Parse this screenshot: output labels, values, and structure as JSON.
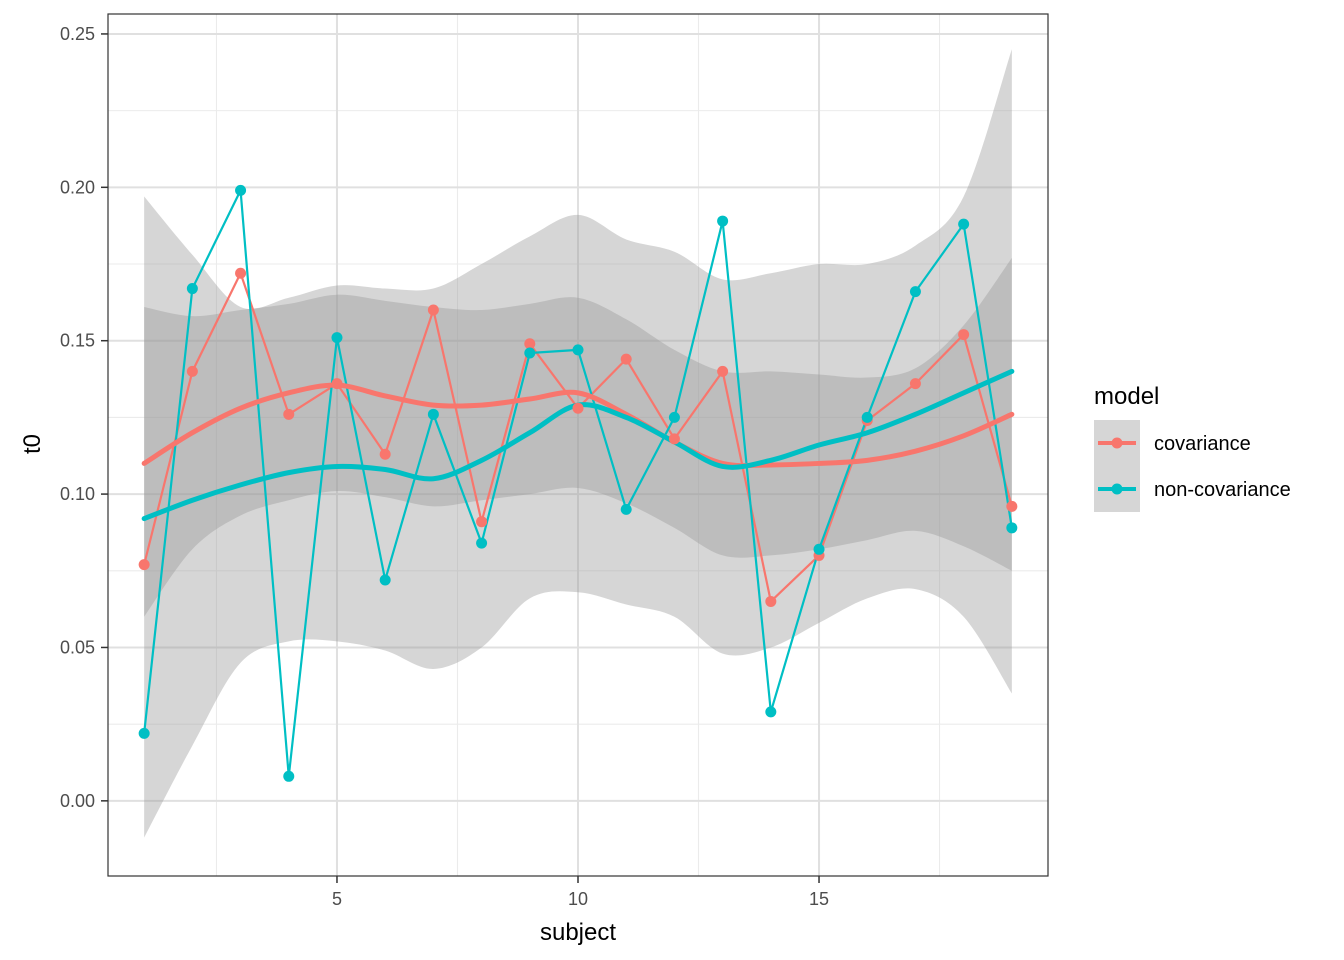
{
  "chart_data": {
    "type": "line",
    "title": "",
    "xlabel": "subject",
    "ylabel": "t0",
    "xlim": [
      0.25,
      19.75
    ],
    "ylim": [
      -0.0245,
      0.2565
    ],
    "x_ticks": [
      5,
      10,
      15
    ],
    "x_tick_labels": [
      "5",
      "10",
      "15"
    ],
    "y_ticks": [
      0.0,
      0.05,
      0.1,
      0.15,
      0.2,
      0.25
    ],
    "y_tick_labels": [
      "0.00",
      "0.05",
      "0.10",
      "0.15",
      "0.20",
      "0.25"
    ],
    "grid": true,
    "legend": {
      "title": "model",
      "position": "right",
      "entries": [
        "covariance",
        "non-covariance"
      ]
    },
    "x": [
      1,
      2,
      3,
      4,
      5,
      6,
      7,
      8,
      9,
      10,
      11,
      12,
      13,
      14,
      15,
      16,
      17,
      18,
      19
    ],
    "series": [
      {
        "name": "covariance",
        "color": "#F8766D",
        "values": [
          0.077,
          0.14,
          0.172,
          0.126,
          0.136,
          0.113,
          0.16,
          0.091,
          0.149,
          0.128,
          0.144,
          0.118,
          0.14,
          0.065,
          0.08,
          0.124,
          0.136,
          0.152,
          0.096
        ],
        "smooth": {
          "x": [
            1,
            2,
            3,
            4,
            5,
            6,
            7,
            8,
            9,
            10,
            11,
            12,
            13,
            14,
            15,
            16,
            17,
            18,
            19
          ],
          "y": [
            0.11,
            0.12,
            0.128,
            0.133,
            0.1355,
            0.132,
            0.129,
            0.129,
            0.131,
            0.133,
            0.126,
            0.117,
            0.11,
            0.1095,
            0.11,
            0.111,
            0.114,
            0.119,
            0.126
          ],
          "lower": [
            0.06,
            0.082,
            0.093,
            0.098,
            0.101,
            0.099,
            0.096,
            0.098,
            0.1,
            0.102,
            0.097,
            0.089,
            0.08,
            0.08,
            0.082,
            0.085,
            0.088,
            0.083,
            0.075
          ],
          "upper": [
            0.161,
            0.158,
            0.16,
            0.162,
            0.165,
            0.163,
            0.161,
            0.16,
            0.162,
            0.164,
            0.157,
            0.147,
            0.14,
            0.14,
            0.139,
            0.138,
            0.141,
            0.155,
            0.177
          ]
        }
      },
      {
        "name": "non-covariance",
        "color": "#00BFC4",
        "values": [
          0.022,
          0.167,
          0.199,
          0.008,
          0.151,
          0.072,
          0.126,
          0.084,
          0.146,
          0.147,
          0.095,
          0.125,
          0.189,
          0.029,
          0.082,
          0.125,
          0.166,
          0.188,
          0.089
        ],
        "smooth": {
          "x": [
            1,
            2,
            3,
            4,
            5,
            6,
            7,
            8,
            9,
            10,
            11,
            12,
            13,
            14,
            15,
            16,
            17,
            18,
            19
          ],
          "y": [
            0.092,
            0.098,
            0.103,
            0.107,
            0.109,
            0.108,
            0.105,
            0.111,
            0.12,
            0.129,
            0.125,
            0.117,
            0.109,
            0.111,
            0.116,
            0.12,
            0.126,
            0.133,
            0.14
          ],
          "lower": [
            -0.012,
            0.018,
            0.045,
            0.052,
            0.052,
            0.049,
            0.043,
            0.05,
            0.066,
            0.068,
            0.064,
            0.06,
            0.048,
            0.05,
            0.058,
            0.066,
            0.069,
            0.06,
            0.035
          ],
          "upper": [
            0.197,
            0.178,
            0.161,
            0.164,
            0.168,
            0.167,
            0.167,
            0.175,
            0.184,
            0.191,
            0.183,
            0.179,
            0.17,
            0.172,
            0.175,
            0.175,
            0.181,
            0.197,
            0.245
          ]
        }
      }
    ]
  }
}
